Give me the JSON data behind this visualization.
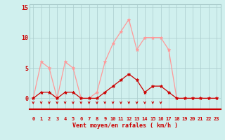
{
  "hours": [
    0,
    1,
    2,
    3,
    4,
    5,
    6,
    7,
    8,
    9,
    10,
    11,
    12,
    13,
    14,
    15,
    16,
    17,
    18,
    19,
    20,
    21,
    22,
    23
  ],
  "vent_moyen": [
    0,
    1,
    1,
    0,
    1,
    1,
    0,
    0,
    0,
    1,
    2,
    3,
    4,
    3,
    1,
    2,
    2,
    1,
    0,
    0,
    0,
    0,
    0,
    0
  ],
  "rafales": [
    0,
    6,
    5,
    0,
    6,
    5,
    0,
    0,
    1,
    6,
    9,
    11,
    13,
    8,
    10,
    10,
    10,
    8,
    0,
    0,
    0,
    0,
    0,
    0
  ],
  "arrow_hours": [
    0,
    1,
    2,
    3,
    4,
    5,
    6,
    7,
    8,
    9,
    10,
    11,
    12,
    13,
    14,
    15,
    16
  ],
  "bg_color": "#d0f0ee",
  "grid_color": "#aacccc",
  "line_color_moyen": "#cc0000",
  "line_color_rafales": "#ff9999",
  "arrow_color": "#cc0000",
  "xlabel": "Vent moyen/en rafales ( km/h )",
  "ylim": [
    -1.8,
    15.5
  ],
  "xlim": [
    -0.5,
    23.5
  ],
  "yticks": [
    0,
    5,
    10,
    15
  ],
  "tick_color": "#cc0000",
  "xlabel_color": "#cc0000",
  "spine_bottom_color": "#cc0000"
}
